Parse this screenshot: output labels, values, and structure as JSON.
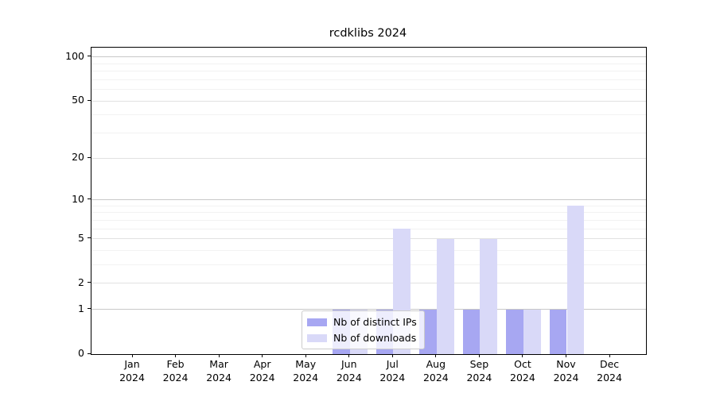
{
  "title": "rcdklibs 2024",
  "chart_data": {
    "type": "bar",
    "title": "rcdklibs 2024",
    "categories": [
      "Jan",
      "Feb",
      "Mar",
      "Apr",
      "May",
      "Jun",
      "Jul",
      "Aug",
      "Sep",
      "Oct",
      "Nov",
      "Dec"
    ],
    "year_label": "2024",
    "series": [
      {
        "name": "Nb of distinct IPs",
        "color": "#a7a7f2",
        "values": [
          0,
          0,
          0,
          0,
          0,
          1,
          1,
          1,
          1,
          1,
          1,
          0
        ]
      },
      {
        "name": "Nb of downloads",
        "color": "#d9d9f8",
        "values": [
          0,
          0,
          0,
          0,
          0,
          1,
          6,
          5,
          5,
          1,
          9,
          0
        ]
      }
    ],
    "y_ticks": [
      0,
      1,
      2,
      5,
      10,
      20,
      50,
      100
    ],
    "ylim": [
      0,
      116
    ],
    "scale": "log1p",
    "grid": true,
    "legend_position": "lower-center-inside",
    "axis_color": "#000000",
    "grid_major_decade_color": "#c8c8c8",
    "grid_major_color": "#e2e2e2",
    "grid_minor_color": "#f2f2f2"
  }
}
